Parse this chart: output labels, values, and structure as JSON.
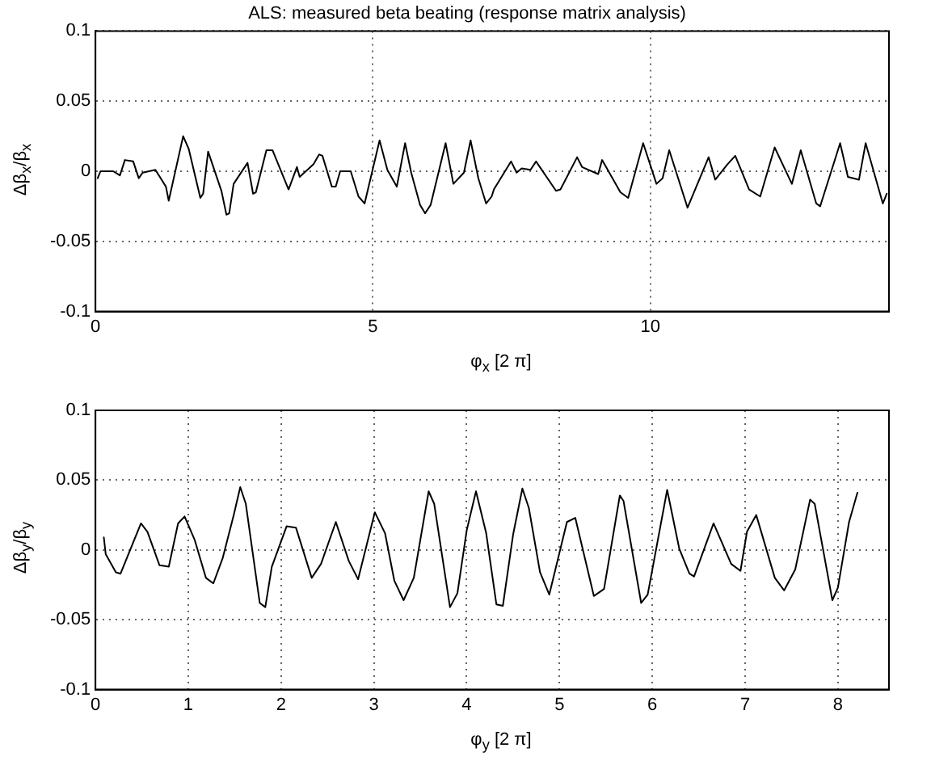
{
  "chart_data": [
    {
      "type": "line",
      "title": "ALS: measured beta beating (response matrix analysis)",
      "xlabel": "φ$_{x}$ [2 π]",
      "ylabel": "Δβ$_{x}$/β$_{x}$",
      "color": "#000000",
      "grid": true,
      "x": [
        0.04,
        0.09,
        0.32,
        0.44,
        0.53,
        0.68,
        0.78,
        0.85,
        1.08,
        1.27,
        1.32,
        1.58,
        1.68,
        1.89,
        1.94,
        2.03,
        2.27,
        2.36,
        2.41,
        2.49,
        2.74,
        2.84,
        2.89,
        3.08,
        3.19,
        3.48,
        3.63,
        3.68,
        3.93,
        4.03,
        4.09,
        4.26,
        4.33,
        4.41,
        4.6,
        4.74,
        4.85,
        5.12,
        5.26,
        5.43,
        5.58,
        5.69,
        5.85,
        5.94,
        6.04,
        6.31,
        6.45,
        6.64,
        6.76,
        6.9,
        7.04,
        7.14,
        7.18,
        7.49,
        7.59,
        7.68,
        7.84,
        7.94,
        8.3,
        8.38,
        8.68,
        8.77,
        9.06,
        9.13,
        9.46,
        9.6,
        9.87,
        10.11,
        10.22,
        10.34,
        10.67,
        11.05,
        11.17,
        11.39,
        11.53,
        11.78,
        11.98,
        12.24,
        12.55,
        12.71,
        12.99,
        13.06,
        13.42,
        13.56,
        13.76,
        13.88,
        14.19,
        14.26
      ],
      "values": [
        -0.005,
        0,
        0,
        -0.003,
        0.008,
        0.007,
        -0.005,
        -0.001,
        0.001,
        -0.011,
        -0.021,
        0.025,
        0.016,
        -0.019,
        -0.016,
        0.014,
        -0.014,
        -0.031,
        -0.03,
        -0.009,
        0.006,
        -0.016,
        -0.015,
        0.015,
        0.015,
        -0.013,
        0.003,
        -0.004,
        0.005,
        0.012,
        0.011,
        -0.011,
        -0.011,
        0,
        0,
        -0.018,
        -0.023,
        0.022,
        0.001,
        -0.011,
        0.02,
        -0.001,
        -0.024,
        -0.03,
        -0.024,
        0.02,
        -0.009,
        -0.001,
        0.022,
        -0.005,
        -0.023,
        -0.018,
        -0.013,
        0.007,
        -0.001,
        0.002,
        0.001,
        0.007,
        -0.014,
        -0.013,
        0.01,
        0.003,
        -0.002,
        0.008,
        -0.015,
        -0.019,
        0.02,
        -0.009,
        -0.005,
        0.015,
        -0.026,
        0.01,
        -0.006,
        0.005,
        0.011,
        -0.013,
        -0.018,
        0.017,
        -0.009,
        0.015,
        -0.023,
        -0.025,
        0.02,
        -0.004,
        -0.006,
        0.02,
        -0.023,
        -0.016
      ],
      "xlim": [
        0,
        14.3
      ],
      "xticks": [
        0,
        5,
        10
      ],
      "ylim": [
        -0.1,
        0.1
      ],
      "yticks": [
        -0.1,
        -0.05,
        0,
        0.05,
        0.1
      ]
    },
    {
      "type": "line",
      "xlabel": "φ$_{y}$ [2 π]",
      "ylabel": "Δβ$_{y}$/β$_{y}$",
      "color": "#000000",
      "grid": true,
      "x": [
        0.09,
        0.11,
        0.22,
        0.27,
        0.49,
        0.56,
        0.69,
        0.79,
        0.89,
        0.96,
        1.07,
        1.19,
        1.27,
        1.37,
        1.49,
        1.56,
        1.62,
        1.77,
        1.83,
        1.9,
        2.06,
        2.16,
        2.33,
        2.43,
        2.59,
        2.73,
        2.83,
        3.01,
        3.12,
        3.22,
        3.32,
        3.43,
        3.59,
        3.65,
        3.82,
        3.9,
        4.0,
        4.1,
        4.21,
        4.32,
        4.39,
        4.5,
        4.6,
        4.67,
        4.79,
        4.89,
        5.08,
        5.17,
        5.37,
        5.48,
        5.65,
        5.69,
        5.88,
        5.95,
        6.16,
        6.29,
        6.4,
        6.45,
        6.66,
        6.85,
        6.95,
        7.02,
        7.12,
        7.32,
        7.42,
        7.54,
        7.7,
        7.75,
        7.94,
        8.0,
        8.12,
        8.21
      ],
      "values": [
        0.009,
        -0.003,
        -0.016,
        -0.017,
        0.019,
        0.013,
        -0.011,
        -0.012,
        0.019,
        0.024,
        0.007,
        -0.02,
        -0.024,
        -0.006,
        0.025,
        0.045,
        0.033,
        -0.038,
        -0.041,
        -0.012,
        0.017,
        0.016,
        -0.02,
        -0.01,
        0.02,
        -0.008,
        -0.021,
        0.027,
        0.012,
        -0.022,
        -0.036,
        -0.02,
        0.042,
        0.033,
        -0.041,
        -0.031,
        0.014,
        0.042,
        0.012,
        -0.039,
        -0.04,
        0.011,
        0.044,
        0.03,
        -0.016,
        -0.032,
        0.02,
        0.023,
        -0.033,
        -0.028,
        0.039,
        0.035,
        -0.038,
        -0.032,
        0.043,
        0.001,
        -0.017,
        -0.019,
        0.019,
        -0.01,
        -0.015,
        0.013,
        0.025,
        -0.02,
        -0.029,
        -0.014,
        0.036,
        0.033,
        -0.036,
        -0.027,
        0.02,
        0.041
      ],
      "xlim": [
        0,
        8.55
      ],
      "xticks": [
        0,
        1,
        2,
        3,
        4,
        5,
        6,
        7,
        8
      ],
      "ylim": [
        -0.1,
        0.1
      ],
      "yticks": [
        -0.1,
        -0.05,
        0,
        0.05,
        0.1
      ]
    }
  ]
}
